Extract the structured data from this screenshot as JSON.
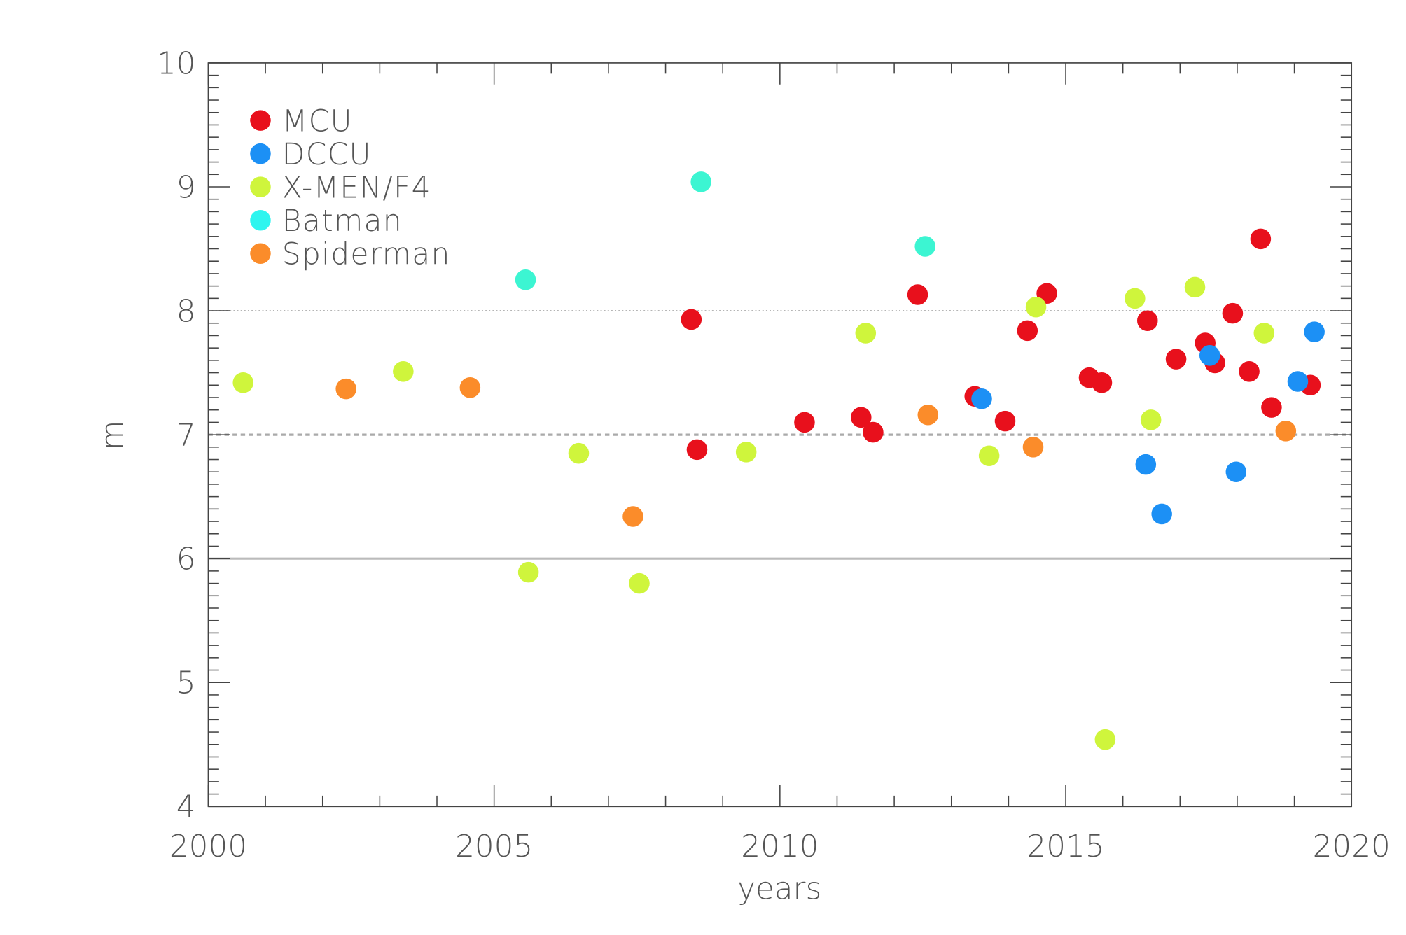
{
  "chart_data": {
    "type": "scatter",
    "title": "",
    "xlabel": "years",
    "ylabel": "m",
    "xlim": [
      2000,
      2020
    ],
    "ylim": [
      4,
      10
    ],
    "xticks": [
      "2000",
      "2005",
      "2010",
      "2015",
      "2020"
    ],
    "yticks": [
      "4",
      "5",
      "6",
      "7",
      "8",
      "9",
      "10"
    ],
    "legend_position": "top-left",
    "reference_lines": [
      {
        "y": 8,
        "style": "dotted",
        "color": "#aaaaaa"
      },
      {
        "y": 7,
        "style": "dashed",
        "color": "#aaaaaa"
      },
      {
        "y": 6,
        "style": "solid",
        "color": "#bbbbbb"
      }
    ],
    "series": [
      {
        "name": "MCU",
        "color": "#e8101c",
        "points": [
          [
            2008.45,
            7.93
          ],
          [
            2008.55,
            6.88
          ],
          [
            2010.43,
            7.1
          ],
          [
            2011.42,
            7.14
          ],
          [
            2011.63,
            7.02
          ],
          [
            2012.41,
            8.13
          ],
          [
            2013.41,
            7.31
          ],
          [
            2013.94,
            7.11
          ],
          [
            2014.33,
            7.84
          ],
          [
            2014.67,
            8.14
          ],
          [
            2015.41,
            7.46
          ],
          [
            2015.63,
            7.42
          ],
          [
            2016.43,
            7.92
          ],
          [
            2016.93,
            7.61
          ],
          [
            2017.44,
            7.74
          ],
          [
            2017.61,
            7.58
          ],
          [
            2017.92,
            7.98
          ],
          [
            2018.21,
            7.51
          ],
          [
            2018.41,
            8.58
          ],
          [
            2018.6,
            7.22
          ],
          [
            2019.28,
            7.4
          ]
        ]
      },
      {
        "name": "DCCU",
        "color": "#1c90f5",
        "points": [
          [
            2013.53,
            7.29
          ],
          [
            2016.4,
            6.76
          ],
          [
            2016.68,
            6.36
          ],
          [
            2017.52,
            7.64
          ],
          [
            2017.98,
            6.7
          ],
          [
            2019.06,
            7.43
          ],
          [
            2019.35,
            7.83
          ]
        ]
      },
      {
        "name": "X-MEN/F4",
        "color": "#cff53c",
        "points": [
          [
            2000.61,
            7.42
          ],
          [
            2003.41,
            7.51
          ],
          [
            2005.6,
            5.89
          ],
          [
            2006.48,
            6.85
          ],
          [
            2007.54,
            5.8
          ],
          [
            2009.41,
            6.86
          ],
          [
            2011.5,
            7.82
          ],
          [
            2013.66,
            6.83
          ],
          [
            2014.48,
            8.03
          ],
          [
            2015.69,
            4.54
          ],
          [
            2016.21,
            8.1
          ],
          [
            2016.49,
            7.12
          ],
          [
            2017.26,
            8.19
          ],
          [
            2018.47,
            7.82
          ]
        ]
      },
      {
        "name": "Batman",
        "color": "#3cf5d2",
        "legend_color": "#2ef5ef",
        "points": [
          [
            2005.55,
            8.25
          ],
          [
            2008.62,
            9.04
          ],
          [
            2012.54,
            8.52
          ]
        ]
      },
      {
        "name": "Spiderman",
        "color": "#fb8c2a",
        "points": [
          [
            2002.41,
            7.37
          ],
          [
            2004.58,
            7.38
          ],
          [
            2007.43,
            6.34
          ],
          [
            2012.59,
            7.16
          ],
          [
            2014.43,
            6.9
          ],
          [
            2018.85,
            7.03
          ]
        ]
      }
    ]
  }
}
